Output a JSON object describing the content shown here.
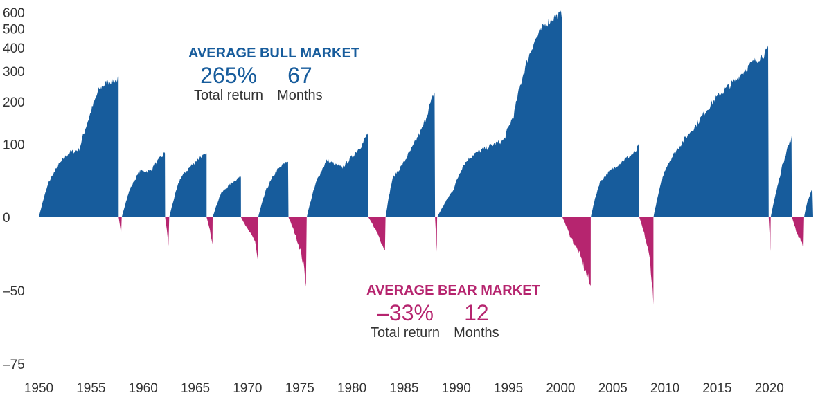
{
  "colors": {
    "bull": "#175C9C",
    "bear": "#B6256F",
    "text": "#333333"
  },
  "bull_annotation": {
    "heading": "AVERAGE BULL MARKET",
    "return_value": "265%",
    "return_label": "Total return",
    "months_value": "67",
    "months_label": "Months"
  },
  "bear_annotation": {
    "heading": "AVERAGE BEAR MARKET",
    "return_value": "–33%",
    "return_label": "Total return",
    "months_value": "12",
    "months_label": "Months"
  },
  "chart_data": {
    "type": "area",
    "y_scale": "log-cumulative",
    "xlim": [
      1950,
      2024.2
    ],
    "y_ticks": [
      {
        "value": 600,
        "label": "600"
      },
      {
        "value": 500,
        "label": "500"
      },
      {
        "value": 400,
        "label": "400"
      },
      {
        "value": 300,
        "label": "300"
      },
      {
        "value": 200,
        "label": "200"
      },
      {
        "value": 100,
        "label": "100"
      },
      {
        "value": 0,
        "label": "0"
      },
      {
        "value": -50,
        "label": "–50"
      },
      {
        "value": -75,
        "label": "–75"
      }
    ],
    "x_ticks": [
      1950,
      1955,
      1960,
      1965,
      1970,
      1975,
      1980,
      1985,
      1990,
      1995,
      2000,
      2005,
      2010,
      2015,
      2020
    ],
    "series": [
      {
        "kind": "bull",
        "start": 1950.0,
        "end": 1957.9,
        "points": [
          [
            1950.0,
            0
          ],
          [
            1951.0,
            40
          ],
          [
            1952.0,
            65
          ],
          [
            1953.0,
            85
          ],
          [
            1954.0,
            90
          ],
          [
            1955.0,
            160
          ],
          [
            1956.0,
            240
          ],
          [
            1957.0,
            265
          ],
          [
            1957.9,
            270
          ]
        ]
      },
      {
        "kind": "bear",
        "start": 1957.9,
        "end": 1958.2,
        "points": [
          [
            1957.9,
            0
          ],
          [
            1958.2,
            -19
          ]
        ]
      },
      {
        "kind": "bull",
        "start": 1958.2,
        "end": 1962.5,
        "points": [
          [
            1958.2,
            0
          ],
          [
            1959.0,
            30
          ],
          [
            1960.0,
            55
          ],
          [
            1961.0,
            55
          ],
          [
            1962.0,
            75
          ],
          [
            1962.5,
            85
          ]
        ]
      },
      {
        "kind": "bear",
        "start": 1962.5,
        "end": 1962.9,
        "points": [
          [
            1962.5,
            0
          ],
          [
            1962.9,
            -28
          ]
        ]
      },
      {
        "kind": "bull",
        "start": 1962.9,
        "end": 1966.6,
        "points": [
          [
            1962.9,
            0
          ],
          [
            1964.0,
            45
          ],
          [
            1965.0,
            62
          ],
          [
            1966.0,
            78
          ],
          [
            1966.6,
            80
          ]
        ]
      },
      {
        "kind": "bear",
        "start": 1966.6,
        "end": 1967.2,
        "points": [
          [
            1966.6,
            0
          ],
          [
            1967.2,
            -22
          ]
        ]
      },
      {
        "kind": "bull",
        "start": 1967.2,
        "end": 1970.0,
        "points": [
          [
            1967.2,
            0
          ],
          [
            1968.0,
            25
          ],
          [
            1969.0,
            38
          ],
          [
            1970.0,
            48
          ]
        ]
      },
      {
        "kind": "bear",
        "start": 1970.0,
        "end": 1971.7,
        "points": [
          [
            1970.0,
            0
          ],
          [
            1970.8,
            -13
          ],
          [
            1971.4,
            -20
          ],
          [
            1971.7,
            -36
          ]
        ]
      },
      {
        "kind": "bull",
        "start": 1971.7,
        "end": 1974.7,
        "points": [
          [
            1971.7,
            0
          ],
          [
            1972.5,
            30
          ],
          [
            1973.5,
            55
          ],
          [
            1974.7,
            72
          ]
        ]
      },
      {
        "kind": "bear",
        "start": 1974.7,
        "end": 1976.5,
        "points": [
          [
            1974.7,
            0
          ],
          [
            1975.5,
            -18
          ],
          [
            1976.0,
            -30
          ],
          [
            1976.5,
            -48
          ]
        ]
      },
      {
        "kind": "bull",
        "start": 1976.5,
        "end": 1982.6,
        "points": [
          [
            1976.5,
            0
          ],
          [
            1977.5,
            42
          ],
          [
            1978.5,
            72
          ],
          [
            1980.0,
            60
          ],
          [
            1981.0,
            78
          ],
          [
            1982.0,
            100
          ],
          [
            1982.6,
            125
          ]
        ]
      },
      {
        "kind": "bear",
        "start": 1982.6,
        "end": 1984.3,
        "points": [
          [
            1982.6,
            0
          ],
          [
            1983.5,
            -14
          ],
          [
            1984.3,
            -28
          ]
        ]
      },
      {
        "kind": "bull",
        "start": 1984.3,
        "end": 1989.2,
        "points": [
          [
            1984.3,
            0
          ],
          [
            1985.0,
            45
          ],
          [
            1986.0,
            65
          ],
          [
            1987.0,
            95
          ],
          [
            1988.0,
            135
          ],
          [
            1989.2,
            230
          ]
        ]
      },
      {
        "kind": "bear",
        "start": 1989.2,
        "end": 1989.4,
        "points": [
          [
            1989.2,
            0
          ],
          [
            1989.4,
            -34
          ]
        ]
      },
      {
        "kind": "bull",
        "start": 1989.4,
        "end": 2001.8,
        "points": [
          [
            1989.4,
            0
          ],
          [
            1991.0,
            30
          ],
          [
            1992.0,
            65
          ],
          [
            1993.0,
            82
          ],
          [
            1995.0,
            100
          ],
          [
            1996.0,
            108
          ],
          [
            1997.0,
            165
          ],
          [
            1998.0,
            300
          ],
          [
            1999.0,
            430
          ],
          [
            2000.0,
            520
          ],
          [
            2001.0,
            570
          ],
          [
            2001.8,
            590
          ]
        ]
      },
      {
        "kind": "bear",
        "start": 2001.8,
        "end": 2004.6,
        "points": [
          [
            2001.8,
            0
          ],
          [
            2002.5,
            -15
          ],
          [
            2003.5,
            -30
          ],
          [
            2004.6,
            -49
          ]
        ]
      },
      {
        "kind": "bull",
        "start": 2004.6,
        "end": 2009.4,
        "points": [
          [
            2004.6,
            0
          ],
          [
            2005.5,
            40
          ],
          [
            2006.5,
            55
          ],
          [
            2007.5,
            68
          ],
          [
            2009.0,
            85
          ],
          [
            2009.4,
            100
          ]
        ]
      },
      {
        "kind": "bear",
        "start": 2009.4,
        "end": 2010.8,
        "points": [
          [
            2009.4,
            0
          ],
          [
            2010.0,
            -18
          ],
          [
            2010.5,
            -35
          ],
          [
            2010.8,
            -57
          ]
        ]
      },
      {
        "kind": "bull",
        "start": 2010.8,
        "end": 2022.2,
        "points": [
          [
            2010.8,
            0
          ],
          [
            2012.0,
            60
          ],
          [
            2013.5,
            100
          ],
          [
            2015.0,
            140
          ],
          [
            2017.0,
            210
          ],
          [
            2019.0,
            270
          ],
          [
            2020.5,
            330
          ],
          [
            2022.0,
            380
          ],
          [
            2022.2,
            400
          ]
        ]
      },
      {
        "kind": "bear",
        "start": 2022.2,
        "end": 2022.4,
        "points": [
          [
            2022.2,
            0
          ],
          [
            2022.4,
            -34
          ]
        ]
      },
      {
        "kind": "bull",
        "start": 2022.4,
        "end": 2024.5,
        "points": [
          [
            2022.4,
            0
          ],
          [
            2023.0,
            30
          ],
          [
            2024.0,
            90
          ],
          [
            2024.5,
            115
          ]
        ]
      },
      {
        "kind": "bear",
        "start": 2024.5,
        "end": 2025.7,
        "points": [
          [
            2024.5,
            0
          ],
          [
            2025.0,
            -14
          ],
          [
            2025.7,
            -25
          ]
        ]
      },
      {
        "kind": "bull",
        "start": 2025.7,
        "end": 2026.6,
        "points": [
          [
            2025.7,
            0
          ],
          [
            2026.0,
            15
          ],
          [
            2026.6,
            33
          ]
        ]
      }
    ]
  }
}
